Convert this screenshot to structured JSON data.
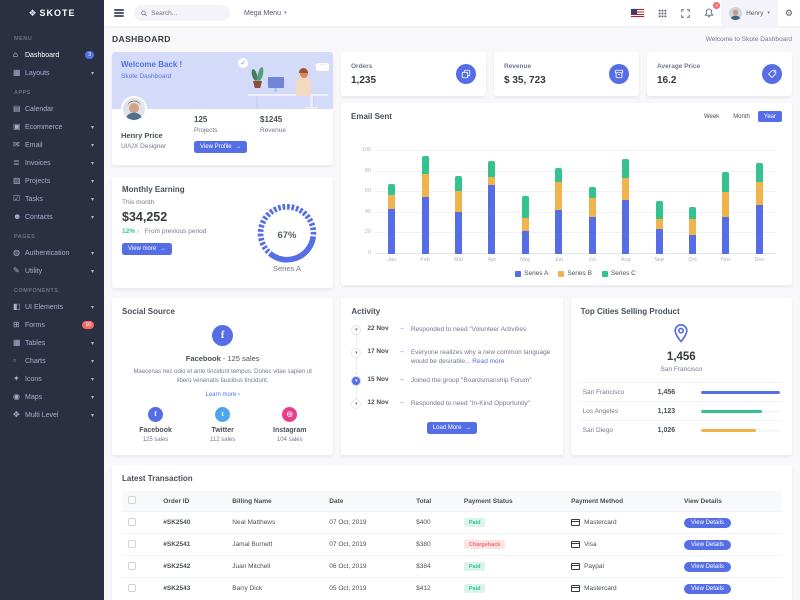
{
  "brand": {
    "name": "SKOTE"
  },
  "topbar": {
    "search_placeholder": "Search...",
    "mega_menu_label": "Mega Menu",
    "notification_count": "3",
    "user_name": "Henry"
  },
  "sidebar": {
    "sections": [
      {
        "label": "MENU",
        "items": [
          {
            "label": "Dashboard",
            "icon": "home-icon",
            "glyph": "⌂",
            "badge": "3",
            "badge_color": "#556ee6",
            "active": true
          },
          {
            "label": "Layouts",
            "icon": "layouts-icon",
            "glyph": "▦",
            "arrow": true
          }
        ]
      },
      {
        "label": "APPS",
        "items": [
          {
            "label": "Calendar",
            "icon": "calendar-icon",
            "glyph": "▤"
          },
          {
            "label": "Ecommerce",
            "icon": "ecommerce-icon",
            "glyph": "▣",
            "arrow": true
          },
          {
            "label": "Email",
            "icon": "email-icon",
            "glyph": "✉",
            "arrow": true
          },
          {
            "label": "Invoices",
            "icon": "invoices-icon",
            "glyph": "≣",
            "arrow": true
          },
          {
            "label": "Projects",
            "icon": "projects-icon",
            "glyph": "▧",
            "arrow": true
          },
          {
            "label": "Tasks",
            "icon": "tasks-icon",
            "glyph": "☑",
            "arrow": true
          },
          {
            "label": "Contacts",
            "icon": "contacts-icon",
            "glyph": "☻",
            "arrow": true
          }
        ]
      },
      {
        "label": "PAGES",
        "items": [
          {
            "label": "Authentication",
            "icon": "authentication-icon",
            "glyph": "◍",
            "arrow": true
          },
          {
            "label": "Utility",
            "icon": "utility-icon",
            "glyph": "✎",
            "arrow": true
          }
        ]
      },
      {
        "label": "COMPONENTS",
        "items": [
          {
            "label": "UI Elements",
            "icon": "ui-elements-icon",
            "glyph": "◧",
            "arrow": true
          },
          {
            "label": "Forms",
            "icon": "forms-icon",
            "glyph": "⊞",
            "badge": "10",
            "badge_color": "#f46a6a"
          },
          {
            "label": "Tables",
            "icon": "tables-icon",
            "glyph": "▦",
            "arrow": true
          },
          {
            "label": "Charts",
            "icon": "charts-icon",
            "glyph": "▫",
            "arrow": true
          },
          {
            "label": "Icons",
            "icon": "icons-icon",
            "glyph": "✦",
            "arrow": true
          },
          {
            "label": "Maps",
            "icon": "maps-icon",
            "glyph": "◉",
            "arrow": true
          },
          {
            "label": "Multi Level",
            "icon": "multi-level-icon",
            "glyph": "✥",
            "arrow": true
          }
        ]
      }
    ]
  },
  "page": {
    "title": "DASHBOARD",
    "welcome_note": "Welcome to Skote Dashboard"
  },
  "welcome": {
    "title": "Welcome Back !",
    "subtitle": "Skote Dashboard",
    "name": "Henry Price",
    "role": "UI/UX Designer",
    "stats": [
      {
        "value": "125",
        "label": "Projects"
      },
      {
        "value": "$1245",
        "label": "Revenue"
      }
    ],
    "button": "View Profile"
  },
  "monthly_earning": {
    "title": "Monthly Earning",
    "period_label": "This month",
    "amount": "$34,252",
    "delta": "12%",
    "delta_arrow": "↑",
    "delta_note": "From previous period",
    "button": "View more",
    "gauge_percent": 67,
    "gauge_value_label": "67%",
    "gauge_series_label": "Series A",
    "gauge_color": "#556ee6"
  },
  "stats_cards": [
    {
      "label": "Orders",
      "value": "1,235",
      "icon": "copy-icon"
    },
    {
      "label": "Revenue",
      "value": "$ 35, 723",
      "icon": "archive-icon"
    },
    {
      "label": "Average Price",
      "value": "16.2",
      "icon": "tag-icon"
    }
  ],
  "email_sent": {
    "title": "Email Sent",
    "ranges": [
      "Week",
      "Month",
      "Year"
    ],
    "active_range": "Year"
  },
  "chart_data": {
    "type": "bar",
    "stacked": true,
    "title": "Email Sent",
    "categories": [
      "Jan",
      "Feb",
      "Mar",
      "Apr",
      "May",
      "Jun",
      "Jul",
      "Aug",
      "Sep",
      "Oct",
      "Nov",
      "Dec"
    ],
    "series": [
      {
        "name": "Series A",
        "color": "#556ee6",
        "values": [
          44,
          55,
          41,
          67,
          22,
          43,
          36,
          52,
          24,
          18,
          36,
          48
        ]
      },
      {
        "name": "Series B",
        "color": "#f1b44c",
        "values": [
          13,
          23,
          20,
          8,
          13,
          27,
          18,
          22,
          10,
          16,
          24,
          22
        ]
      },
      {
        "name": "Series C",
        "color": "#34c38f",
        "values": [
          11,
          17,
          15,
          15,
          21,
          14,
          11,
          18,
          17,
          12,
          20,
          18
        ]
      }
    ],
    "xlabel": "",
    "ylabel": "",
    "ylim": [
      0,
      100
    ],
    "yticks": [
      0,
      20,
      40,
      60,
      80,
      100
    ],
    "grid": true,
    "legend_position": "bottom"
  },
  "social": {
    "title": "Social Source",
    "highlight_network": "Facebook",
    "highlight_sep": " - ",
    "highlight_sales": "125 sales",
    "description": "Maecenas nec odio et ante tincidunt tempus. Donec vitae sapien ut libero venenatis faucibus tincidunt.",
    "link": "Learn more ›",
    "accounts": [
      {
        "name": "Facebook",
        "sales": "125 sales",
        "color": "#556ee6",
        "icon": "facebook-icon",
        "glyph": "f"
      },
      {
        "name": "Twitter",
        "sales": "112 sales",
        "color": "#50a5f1",
        "icon": "twitter-icon",
        "glyph": "t"
      },
      {
        "name": "Instagram",
        "sales": "104 sales",
        "color": "#e83e8c",
        "icon": "instagram-icon",
        "glyph": "◎"
      }
    ]
  },
  "activity": {
    "title": "Activity",
    "items": [
      {
        "date": "22 Nov",
        "text": "Responded to need \"Volunteer Activities"
      },
      {
        "date": "17 Nov",
        "text": "Everyone realizes why a new common language would be desirable... ",
        "link": "Read more"
      },
      {
        "date": "15 Nov",
        "text": "Joined the group \"Boardsmanship Forum\"",
        "active": true
      },
      {
        "date": "12 Nov",
        "text": "Responded to need \"In-Kind Opportunity\""
      }
    ],
    "button": "Load More"
  },
  "top_cities": {
    "title": "Top Cities Selling Product",
    "total": "1,456",
    "total_city": "San Francisco",
    "cities": [
      {
        "name": "San Francisco",
        "value": "1,456",
        "color": "#556ee6",
        "pct": 100
      },
      {
        "name": "Los Angeles",
        "value": "1,123",
        "color": "#34c38f",
        "pct": 77
      },
      {
        "name": "San Diego",
        "value": "1,026",
        "color": "#f1b44c",
        "pct": 70
      }
    ]
  },
  "transactions": {
    "title": "Latest Transaction",
    "columns": [
      "Order ID",
      "Billing Name",
      "Date",
      "Total",
      "Payment Status",
      "Payment Method",
      "View Details"
    ],
    "button_label": "View Details",
    "rows": [
      {
        "id": "#SK2540",
        "name": "Neal Matthews",
        "date": "07 Oct, 2019",
        "total": "$400",
        "status": "Paid",
        "status_type": "success",
        "method": "Mastercard",
        "method_icon": "mastercard-icon"
      },
      {
        "id": "#SK2541",
        "name": "Jamal Burnett",
        "date": "07 Oct, 2019",
        "total": "$380",
        "status": "Chargeback",
        "status_type": "danger",
        "method": "Visa",
        "method_icon": "visa-icon"
      },
      {
        "id": "#SK2542",
        "name": "Juan Mitchell",
        "date": "06 Oct, 2019",
        "total": "$384",
        "status": "Paid",
        "status_type": "success",
        "method": "Paypal",
        "method_icon": "paypal-icon"
      },
      {
        "id": "#SK2543",
        "name": "Barry Dick",
        "date": "05 Oct, 2019",
        "total": "$412",
        "status": "Paid",
        "status_type": "success",
        "method": "Mastercard",
        "method_icon": "mastercard-icon"
      }
    ]
  },
  "colors": {
    "primary": "#556ee6",
    "success": "#34c38f",
    "warning": "#f1b44c",
    "danger": "#f46a6a",
    "info": "#50a5f1",
    "sidebar_bg": "#2a3042",
    "body_bg": "#f8f8fb"
  }
}
